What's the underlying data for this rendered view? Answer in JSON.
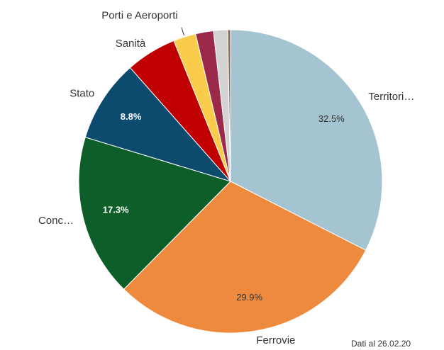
{
  "chart_data": {
    "type": "pie",
    "categories": [
      "Territori…",
      "Ferrovie",
      "Conc…",
      "Stato",
      "Sanità",
      "Porti e Aeroporti",
      null,
      null,
      null
    ],
    "values": [
      32.5,
      29.9,
      17.3,
      8.8,
      5.4,
      2.4,
      1.9,
      1.5,
      0.3
    ],
    "value_labels": [
      "32.5%",
      "29.9%",
      "17.3%",
      "8.8%",
      null,
      null,
      null,
      null,
      null
    ],
    "colors": [
      "#a3c4d0",
      "#ee8a3d",
      "#0e5e2a",
      "#0c4a6e",
      "#c00000",
      "#f9cd4b",
      "#9b2a4a",
      "#d3d3d3",
      "#8b6b50"
    ],
    "note": "Dati al 26.02.20"
  }
}
